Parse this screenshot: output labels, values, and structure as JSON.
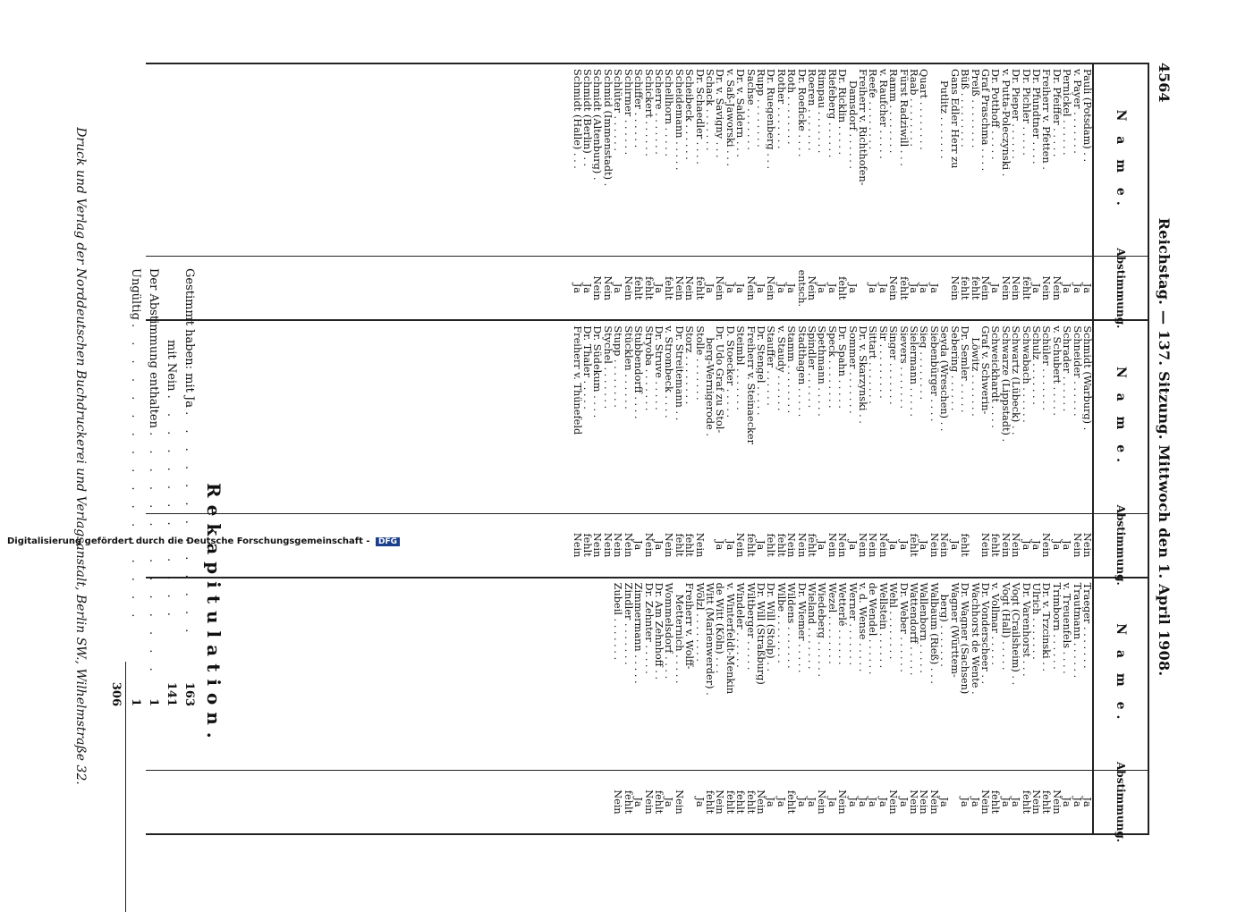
{
  "header": {
    "page_number": "4564",
    "title": "Reichstag. — 137. Sitzung. Mittwoch den 1. April 1908."
  },
  "columns": [
    {
      "name_header": "N a m e.",
      "vote_header": "Abstimmung.",
      "rows": [
        {
          "name": "Pauli (Potsdam) . .",
          "vote": "Ja"
        },
        {
          "name": "v. Payer . . . . . . .",
          "vote": "Ja"
        },
        {
          "name": "Pernickel . . . . . .",
          "vote": "Ja"
        },
        {
          "name": "Dr. Pfeiffer . . . . .",
          "vote": "Nein"
        },
        {
          "name": "Freiherr v. Pfetten .",
          "vote": "Nein"
        },
        {
          "name": "Dr. Pfundtner . . . .",
          "vote": "Ja"
        },
        {
          "name": "Dr. Pichler . . . . .",
          "vote": "fehlt"
        },
        {
          "name": "Dr. Pieper . . . . . .",
          "vote": "Nein"
        },
        {
          "name": "v. Putta-Poleczynski .",
          "vote": "Nein"
        },
        {
          "name": "Dr. Potthoff . . . . .",
          "vote": "Ja"
        },
        {
          "name": "Graf Praschma . . . .",
          "vote": "Nein"
        },
        {
          "name": "Preiß . . . . . . . .",
          "vote": "fehlt"
        },
        {
          "name": "Büß . . . . . . . . .",
          "vote": "fehlt"
        },
        {
          "name": "Gans Edler Herr zu",
          "vote": "Nein"
        },
        {
          "name": "Putlitz . . . . . . .",
          "vote": "",
          "indent": true
        },
        {
          "name": "",
          "vote": "Ja"
        },
        {
          "name": "",
          "vote": ""
        },
        {
          "name": "Quart . . . . . . . .",
          "vote": "Ja"
        },
        {
          "name": "",
          "vote": ""
        },
        {
          "name": "",
          "vote": ""
        },
        {
          "name": "Raab . . . . . . . .",
          "vote": "Ja"
        },
        {
          "name": "Fürst Radziwill . . .",
          "vote": "fehlt"
        },
        {
          "name": "Ramm . . . . . . . .",
          "vote": "Nein"
        },
        {
          "name": "v. Raufcher . . . . .",
          "vote": "Ja"
        },
        {
          "name": "Reefe . . . . . . . .",
          "vote": "Ja"
        },
        {
          "name": "Freiherr v. Richthofen-",
          "vote": ""
        },
        {
          "name": "Damsdorf . . . . . .",
          "vote": "Ja",
          "indent": true
        },
        {
          "name": "Dr. Ricklin . . . . .",
          "vote": "fehlt"
        },
        {
          "name": "Riefeberg . . . . . .",
          "vote": "Ja"
        },
        {
          "name": "Rimpau . . . . . . .",
          "vote": "Ja"
        },
        {
          "name": "Roeren . . . . . . .",
          "vote": "Nein"
        },
        {
          "name": "Dr. Roeficke . . . .",
          "vote": "entsch."
        },
        {
          "name": "Roth . . . . . . . .",
          "vote": "Ja"
        },
        {
          "name": "Rother . . . . . . .",
          "vote": "Ja"
        },
        {
          "name": "Dr. Ruegenberg . . .",
          "vote": "Nein"
        },
        {
          "name": "Rupp . . . . . . . .",
          "vote": "Ja"
        },
        {
          "name": "",
          "vote": ""
        },
        {
          "name": "",
          "vote": ""
        },
        {
          "name": "",
          "vote": ""
        },
        {
          "name": "Sachse . . . . . . .",
          "vote": "Nein"
        },
        {
          "name": "Dr. v. Saldern . . .",
          "vote": "Ja"
        },
        {
          "name": "v. Saß-Jaworski . . .",
          "vote": "Ja"
        },
        {
          "name": "Dr. v. Savigny . . .",
          "vote": "Nein"
        },
        {
          "name": "Schack . . . . . . .",
          "vote": "Ja"
        },
        {
          "name": "Dr. Schaedler . . . .",
          "vote": "fehlt"
        },
        {
          "name": "Scheibeck . . . . . .",
          "vote": "Nein"
        },
        {
          "name": "Scheidemann . . . . .",
          "vote": "Nein"
        },
        {
          "name": "Schellhorn . . . . .",
          "vote": "fehlt"
        },
        {
          "name": "Scherre . . . . . . .",
          "vote": "Ja"
        },
        {
          "name": "Schickert . . . . . .",
          "vote": "fehlt"
        },
        {
          "name": "Schiffer . . . . . .",
          "vote": "fehlt"
        },
        {
          "name": "Schirmer . . . . . .",
          "vote": "Nein"
        },
        {
          "name": "Schlüter . . . . . .",
          "vote": "Ja"
        },
        {
          "name": "Schmid (Immenstadt) .",
          "vote": "Nein"
        },
        {
          "name": "Schmidt (Altenburg) .",
          "vote": "Nein"
        },
        {
          "name": "Schmidt (Berlin) . .",
          "vote": "Ja"
        },
        {
          "name": "Schmidt (Halle) . . .",
          "vote": "Ja"
        }
      ]
    },
    {
      "name_header": "N a m e.",
      "vote_header": "Abstimmung.",
      "rows": [
        {
          "name": "Schmidt (Warburg) .",
          "vote": "Nein"
        },
        {
          "name": "Schneider . . . . . .",
          "vote": "Nein"
        },
        {
          "name": "Schrader . . . . . .",
          "vote": "Ja"
        },
        {
          "name": "v. Schubert . . . . .",
          "vote": "Ja"
        },
        {
          "name": "Schüler . . . . . . .",
          "vote": "Nein"
        },
        {
          "name": "Schulz . . . . . . .",
          "vote": "Ja"
        },
        {
          "name": "Schwabach . . . . . .",
          "vote": "Ja"
        },
        {
          "name": "Schwartz (Lübeck) . .",
          "vote": "Nein"
        },
        {
          "name": "Schwarze (Lippstadt) .",
          "vote": "Nein"
        },
        {
          "name": "Schweickhardt . . . .",
          "vote": "fehlt"
        },
        {
          "name": "Graf v. Schwerin-",
          "vote": "Nein"
        },
        {
          "name": "Löwitz . . . . . . .",
          "vote": "",
          "indent": true
        },
        {
          "name": "Dr. Semler . . . . .",
          "vote": "fehlt"
        },
        {
          "name": "Sebering . . . . . .",
          "vote": "Ja"
        },
        {
          "name": "Seyda (Wreschen) . .",
          "vote": "Nein"
        },
        {
          "name": "Siebenbürger . . . .",
          "vote": "Nein"
        },
        {
          "name": "Sieg . . . . . . . .",
          "vote": "Ja"
        },
        {
          "name": "Sielermann . . . . .",
          "vote": "fehlt"
        },
        {
          "name": "Sievers . . . . . . .",
          "vote": "Ja"
        },
        {
          "name": "Singer . . . . . . .",
          "vote": "Ja"
        },
        {
          "name": "Sir . . . . . . . . .",
          "vote": "Nein"
        },
        {
          "name": "Sittart . . . . . . .",
          "vote": "Nein"
        },
        {
          "name": "Dr. v. Skarzynski . .",
          "vote": "Nein"
        },
        {
          "name": "Sommer . . . . . . .",
          "vote": "Ja"
        },
        {
          "name": "Dr. Spahn . . . . .",
          "vote": "Nein"
        },
        {
          "name": "Speck . . . . . . . .",
          "vote": "Nein"
        },
        {
          "name": "Spethmann . . . . .",
          "vote": "Ja"
        },
        {
          "name": "Spindler . . . . . .",
          "vote": "fehlt"
        },
        {
          "name": "Stadthagen . . . . .",
          "vote": "Nein"
        },
        {
          "name": "Stamm . . . . . . . .",
          "vote": "Nein"
        },
        {
          "name": "v. Staudy . . . . . .",
          "vote": "fehlt"
        },
        {
          "name": "Stauffer . . . . . .",
          "vote": "fehlt"
        },
        {
          "name": "Dr. Stengel . . . . .",
          "vote": "Ja"
        },
        {
          "name": "Freiherr v. Steinaecker",
          "vote": "fehlt"
        },
        {
          "name": "Steimbl . . . . . . .",
          "vote": "Nein"
        },
        {
          "name": "D. Stoecker . . . . .",
          "vote": "Ja"
        },
        {
          "name": "Dr. Udo Graf zu Stol-",
          "vote": "Ja"
        },
        {
          "name": "berg-Wernigerode .",
          "vote": "",
          "indent": true
        },
        {
          "name": "Stolle . . . . . . .",
          "vote": "Nein"
        },
        {
          "name": "Storz . . . . . . . .",
          "vote": "fehlt"
        },
        {
          "name": "Dr. Streitemann . .",
          "vote": "fehlt"
        },
        {
          "name": "v. Strombeck . . . .",
          "vote": "Nein"
        },
        {
          "name": "Dr. Struve . . . . .",
          "vote": "Ja"
        },
        {
          "name": "Stryoba . . . . . . .",
          "vote": "Nein"
        },
        {
          "name": "Stubbendorff . . . .",
          "vote": "Ja"
        },
        {
          "name": "Stücklen . . . . . .",
          "vote": "Nein"
        },
        {
          "name": "Stupp . . . . . . . .",
          "vote": "Nein"
        },
        {
          "name": "Stychel . . . . . . .",
          "vote": "Nein"
        },
        {
          "name": "Dr. Südekum . . . .",
          "vote": "Nein"
        },
        {
          "name": "",
          "vote": ""
        },
        {
          "name": "",
          "vote": ""
        },
        {
          "name": "",
          "vote": ""
        },
        {
          "name": "",
          "vote": ""
        },
        {
          "name": "",
          "vote": ""
        },
        {
          "name": "Dr. Thaler . . . . .",
          "vote": "fehlt"
        },
        {
          "name": "Freiherr v. Thünefeld",
          "vote": "Nein"
        }
      ]
    },
    {
      "name_header": "N a m e.",
      "vote_header": "Abstimmung.",
      "rows": [
        {
          "name": "Traeger . . . . . . .",
          "vote": "Ja"
        },
        {
          "name": "Trautmann . . . . . .",
          "vote": "Ja"
        },
        {
          "name": "v. Treuenfels . . . .",
          "vote": "Ja"
        },
        {
          "name": "Trimborn . . . . . .",
          "vote": "Nein"
        },
        {
          "name": "Dr. v. Trzcinski . .",
          "vote": "fehlt"
        },
        {
          "name": "",
          "vote": ""
        },
        {
          "name": "",
          "vote": ""
        },
        {
          "name": "",
          "vote": ""
        },
        {
          "name": "Ulrich . . . . . . .",
          "vote": "Nein"
        },
        {
          "name": "",
          "vote": ""
        },
        {
          "name": "",
          "vote": ""
        },
        {
          "name": "",
          "vote": ""
        },
        {
          "name": "Dr. Varenhorst . . .",
          "vote": "fehlt"
        },
        {
          "name": "Vogt (Crailsheim) . .",
          "vote": "Ja"
        },
        {
          "name": "Vogt (Hall) . . . . .",
          "vote": "Ja"
        },
        {
          "name": "v. Vollmar . . . . .",
          "vote": "fehlt"
        },
        {
          "name": "Dr. Vonderscheer . .",
          "vote": "Nein"
        },
        {
          "name": "",
          "vote": ""
        },
        {
          "name": "",
          "vote": ""
        },
        {
          "name": "Wachhorst de Wente .",
          "vote": "Ja"
        },
        {
          "name": "Dr. Wagner (Sachsen)",
          "vote": "Ja"
        },
        {
          "name": "Wagner (Württem-",
          "vote": ""
        },
        {
          "name": "berg) . . . . . . .",
          "vote": "Ja",
          "indent": true
        },
        {
          "name": "Walbaum (Rieß) . . .",
          "vote": "Nein"
        },
        {
          "name": "Wallenborn . . . . .",
          "vote": "Nein"
        },
        {
          "name": "Wattendorff . . . . .",
          "vote": "Nein"
        },
        {
          "name": "Dr. Weber . . . . . .",
          "vote": "Ja"
        },
        {
          "name": "Wehl . . . . . . . .",
          "vote": "Nein"
        },
        {
          "name": "Wellstein . . . . . .",
          "vote": "Ja"
        },
        {
          "name": "de Wendel . . . . . .",
          "vote": "Ja"
        },
        {
          "name": "v. d. Wense . . . . .",
          "vote": "Ja"
        },
        {
          "name": "Werner . . . . . . .",
          "vote": "Ja"
        },
        {
          "name": "Wetterlé . . . . . .",
          "vote": "Nein"
        },
        {
          "name": "Wezel . . . . . . . .",
          "vote": "Ja"
        },
        {
          "name": "Wiedeberg . . . . . .",
          "vote": "Nein"
        },
        {
          "name": "Wieland . . . . . . .",
          "vote": "Ja"
        },
        {
          "name": "Dr. Wiemer . . . . .",
          "vote": "Ja"
        },
        {
          "name": "Wildens . . . . . . .",
          "vote": "fehlt"
        },
        {
          "name": "Wilbe . . . . . . . .",
          "vote": "Ja"
        },
        {
          "name": "Dr. Will (Stolp) . .",
          "vote": "Ja"
        },
        {
          "name": "Dr. Will (Straßburg)",
          "vote": "Nein"
        },
        {
          "name": "Wiltberger . . . . .",
          "vote": "fehlt"
        },
        {
          "name": "Windeler . . . . . .",
          "vote": "fehlt"
        },
        {
          "name": "v. Winterfeldt-Menkin",
          "vote": "fehlt"
        },
        {
          "name": "de Witt (Köln) . . .",
          "vote": "Nein"
        },
        {
          "name": "Witt (Marienwerder) .",
          "vote": "fehlt"
        },
        {
          "name": "Wölzl . . . . . . . .",
          "vote": "Ja"
        },
        {
          "name": "Freiherr v. Wolff-",
          "vote": ""
        },
        {
          "name": "Metternich . . . . .",
          "vote": "Nein",
          "indent": true
        },
        {
          "name": "Wommelsdorf . . . .",
          "vote": "Ja"
        },
        {
          "name": "",
          "vote": ""
        },
        {
          "name": "",
          "vote": ""
        },
        {
          "name": "",
          "vote": ""
        },
        {
          "name": "Dr. Am Zehnhoff . .",
          "vote": "fehlt"
        },
        {
          "name": "Dr. Zehnter . . . . .",
          "vote": "Nein"
        },
        {
          "name": "Zimmermann . . . . .",
          "vote": "Ja"
        },
        {
          "name": "Zindler . . . . . . .",
          "vote": "fehlt"
        },
        {
          "name": "Zubeil . . . . . . .",
          "vote": "Nein"
        }
      ]
    }
  ],
  "recap": {
    "title": "Rekapitulation.",
    "line1_label": "Gestimmt haben: mit Ja",
    "line1_value": "163",
    "line2_label": "mit Nein",
    "line2_value": "141",
    "line3_label": "Der Abstimmung enthalten",
    "line3_value": "1",
    "line4_label": "Ungültig",
    "line4_value": "1",
    "total_value": "306"
  },
  "footer": "Druck und Verlag der Norddeutschen Buchdruckerei und Verlagsanstalt, Berlin SW., Wilhelmstraße 32.",
  "sideline": {
    "text": "Digitalisierung gefördert durch die Deutsche Forschungsgemeinschaft -",
    "logo": "DFG"
  }
}
